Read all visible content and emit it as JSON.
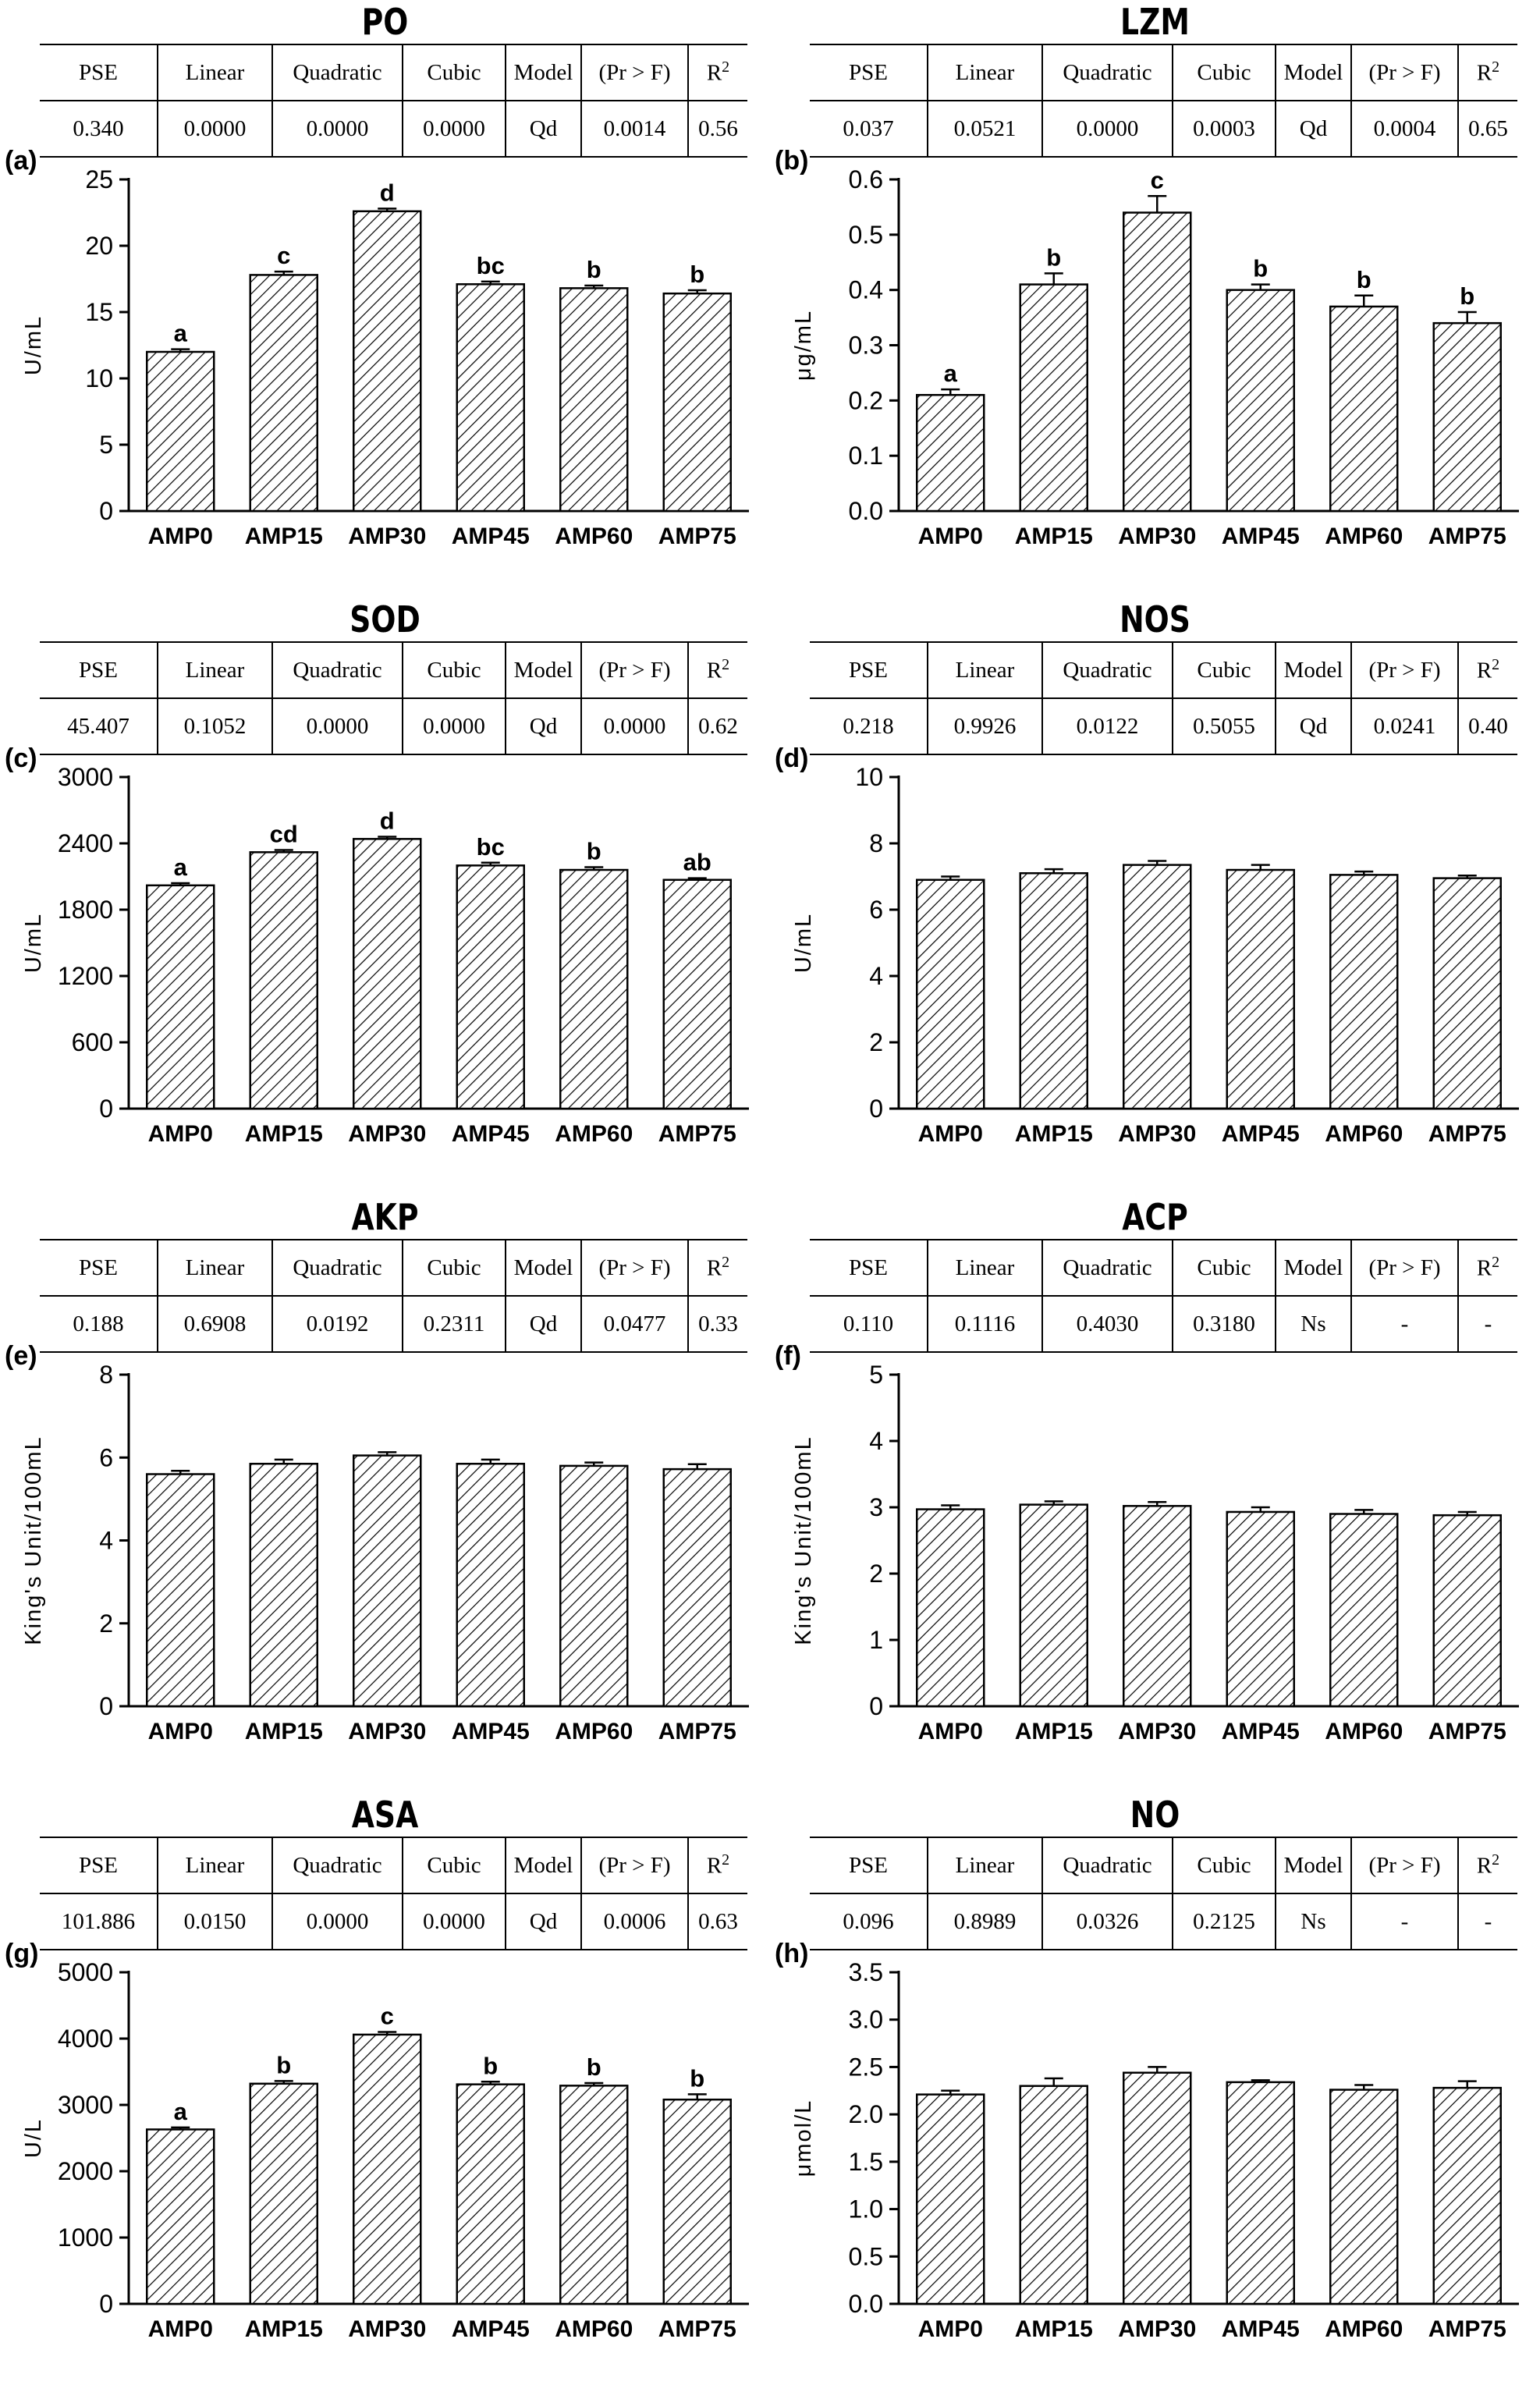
{
  "stat_headers": [
    "PSE",
    "Linear",
    "Quadratic",
    "Cubic",
    "Model",
    "(Pr > F)",
    "R",
    "2"
  ],
  "chart_data": [
    {
      "type": "bar",
      "panel_label": "(a)",
      "title": "PO",
      "stats": {
        "PSE": "0.340",
        "Linear": "0.0000",
        "Quadratic": "0.0000",
        "Cubic": "0.0000",
        "Model": "Qd",
        "PrF": "0.0014",
        "R2": "0.56"
      },
      "ylabel": "U/mL",
      "ylim": [
        0,
        25
      ],
      "yticks": [
        "0",
        "5",
        "10",
        "15",
        "20",
        "25"
      ],
      "categories": [
        "AMP0",
        "AMP15",
        "AMP30",
        "AMP45",
        "AMP60",
        "AMP75"
      ],
      "values": [
        12.0,
        17.8,
        22.6,
        17.1,
        16.8,
        16.4
      ],
      "errors": [
        0.2,
        0.25,
        0.2,
        0.2,
        0.2,
        0.25
      ],
      "letters": [
        "a",
        "c",
        "d",
        "bc",
        "b",
        "b"
      ],
      "pattern": "diagonal-hatch",
      "grid": false
    },
    {
      "type": "bar",
      "panel_label": "(b)",
      "title": "LZM",
      "stats": {
        "PSE": "0.037",
        "Linear": "0.0521",
        "Quadratic": "0.0000",
        "Cubic": "0.0003",
        "Model": "Qd",
        "PrF": "0.0004",
        "R2": "0.65"
      },
      "ylabel": "μg/mL",
      "ylim": [
        0,
        0.6
      ],
      "yticks": [
        "0.0",
        "0.1",
        "0.2",
        "0.3",
        "0.4",
        "0.5",
        "0.6"
      ],
      "categories": [
        "AMP0",
        "AMP15",
        "AMP30",
        "AMP45",
        "AMP60",
        "AMP75"
      ],
      "values": [
        0.21,
        0.41,
        0.54,
        0.4,
        0.37,
        0.34
      ],
      "errors": [
        0.01,
        0.02,
        0.03,
        0.01,
        0.02,
        0.02
      ],
      "letters": [
        "a",
        "b",
        "c",
        "b",
        "b",
        "b"
      ],
      "pattern": "diagonal-hatch",
      "grid": false
    },
    {
      "type": "bar",
      "panel_label": "(c)",
      "title": "SOD",
      "stats": {
        "PSE": "45.407",
        "Linear": "0.1052",
        "Quadratic": "0.0000",
        "Cubic": "0.0000",
        "Model": "Qd",
        "PrF": "0.0000",
        "R2": "0.62"
      },
      "ylabel": "U/mL",
      "ylim": [
        0,
        3000
      ],
      "yticks": [
        "0",
        "600",
        "1200",
        "1800",
        "2400",
        "3000"
      ],
      "categories": [
        "AMP0",
        "AMP15",
        "AMP30",
        "AMP45",
        "AMP60",
        "AMP75"
      ],
      "values": [
        2020,
        2320,
        2440,
        2200,
        2160,
        2070
      ],
      "errors": [
        20,
        20,
        20,
        25,
        25,
        15
      ],
      "letters": [
        "a",
        "cd",
        "d",
        "bc",
        "b",
        "ab"
      ],
      "pattern": "diagonal-hatch",
      "grid": false
    },
    {
      "type": "bar",
      "panel_label": "(d)",
      "title": "NOS",
      "stats": {
        "PSE": "0.218",
        "Linear": "0.9926",
        "Quadratic": "0.0122",
        "Cubic": "0.5055",
        "Model": "Qd",
        "PrF": "0.0241",
        "R2": "0.40"
      },
      "ylabel": "U/mL",
      "ylim": [
        0,
        10
      ],
      "yticks": [
        "0",
        "2",
        "4",
        "6",
        "8",
        "10"
      ],
      "categories": [
        "AMP0",
        "AMP15",
        "AMP30",
        "AMP45",
        "AMP60",
        "AMP75"
      ],
      "values": [
        6.9,
        7.1,
        7.35,
        7.2,
        7.05,
        6.95
      ],
      "errors": [
        0.1,
        0.12,
        0.12,
        0.15,
        0.1,
        0.08
      ],
      "letters": [
        "",
        "",
        "",
        "",
        "",
        ""
      ],
      "pattern": "diagonal-hatch",
      "grid": false
    },
    {
      "type": "bar",
      "panel_label": "(e)",
      "title": "AKP",
      "stats": {
        "PSE": "0.188",
        "Linear": "0.6908",
        "Quadratic": "0.0192",
        "Cubic": "0.2311",
        "Model": "Qd",
        "PrF": "0.0477",
        "R2": "0.33"
      },
      "ylabel": "King's Unit/100mL",
      "ylim": [
        0,
        8
      ],
      "yticks": [
        "0",
        "2",
        "4",
        "6",
        "8"
      ],
      "categories": [
        "AMP0",
        "AMP15",
        "AMP30",
        "AMP45",
        "AMP60",
        "AMP75"
      ],
      "values": [
        5.6,
        5.85,
        6.05,
        5.85,
        5.8,
        5.72
      ],
      "errors": [
        0.08,
        0.1,
        0.08,
        0.1,
        0.08,
        0.12
      ],
      "letters": [
        "",
        "",
        "",
        "",
        "",
        ""
      ],
      "pattern": "diagonal-hatch",
      "grid": false
    },
    {
      "type": "bar",
      "panel_label": "(f)",
      "title": "ACP",
      "stats": {
        "PSE": "0.110",
        "Linear": "0.1116",
        "Quadratic": "0.4030",
        "Cubic": "0.3180",
        "Model": "Ns",
        "PrF": "-",
        "R2": "-"
      },
      "ylabel": "King's Unit/100mL",
      "ylim": [
        0,
        5
      ],
      "yticks": [
        "0",
        "1",
        "2",
        "3",
        "4",
        "5"
      ],
      "categories": [
        "AMP0",
        "AMP15",
        "AMP30",
        "AMP45",
        "AMP60",
        "AMP75"
      ],
      "values": [
        2.97,
        3.04,
        3.02,
        2.93,
        2.9,
        2.88
      ],
      "errors": [
        0.06,
        0.05,
        0.06,
        0.07,
        0.06,
        0.05
      ],
      "letters": [
        "",
        "",
        "",
        "",
        "",
        ""
      ],
      "pattern": "diagonal-hatch",
      "grid": false
    },
    {
      "type": "bar",
      "panel_label": "(g)",
      "title": "ASA",
      "stats": {
        "PSE": "101.886",
        "Linear": "0.0150",
        "Quadratic": "0.0000",
        "Cubic": "0.0000",
        "Model": "Qd",
        "PrF": "0.0006",
        "R2": "0.63"
      },
      "ylabel": "U/L",
      "ylim": [
        0,
        5000
      ],
      "yticks": [
        "0",
        "1000",
        "2000",
        "3000",
        "4000",
        "5000"
      ],
      "categories": [
        "AMP0",
        "AMP15",
        "AMP30",
        "AMP45",
        "AMP60",
        "AMP75"
      ],
      "values": [
        2630,
        3320,
        4060,
        3310,
        3290,
        3080
      ],
      "errors": [
        30,
        40,
        40,
        40,
        40,
        80
      ],
      "letters": [
        "a",
        "b",
        "c",
        "b",
        "b",
        "b"
      ],
      "pattern": "diagonal-hatch",
      "grid": false
    },
    {
      "type": "bar",
      "panel_label": "(h)",
      "title": "NO",
      "stats": {
        "PSE": "0.096",
        "Linear": "0.8989",
        "Quadratic": "0.0326",
        "Cubic": "0.2125",
        "Model": "Ns",
        "PrF": "-",
        "R2": "-"
      },
      "ylabel": "μmol/L",
      "ylim": [
        0,
        3.5
      ],
      "yticks": [
        "0.0",
        "0.5",
        "1.0",
        "1.5",
        "2.0",
        "2.5",
        "3.0",
        "3.5"
      ],
      "categories": [
        "AMP0",
        "AMP15",
        "AMP30",
        "AMP45",
        "AMP60",
        "AMP75"
      ],
      "values": [
        2.21,
        2.3,
        2.44,
        2.34,
        2.26,
        2.28
      ],
      "errors": [
        0.04,
        0.08,
        0.06,
        0.02,
        0.05,
        0.07
      ],
      "letters": [
        "",
        "",
        "",
        "",
        "",
        ""
      ],
      "pattern": "diagonal-hatch",
      "grid": false
    }
  ]
}
